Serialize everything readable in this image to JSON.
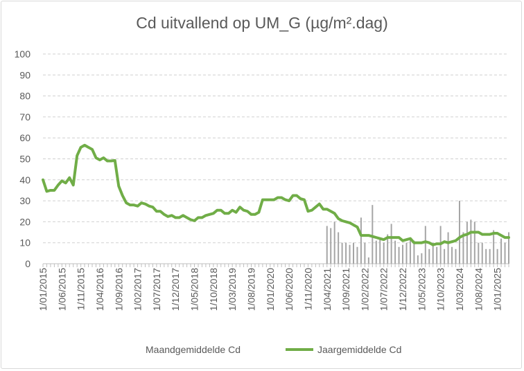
{
  "chart_data": {
    "type": "bar+line",
    "title": "Cd uitvallend op UM_G (µg/m².dag)",
    "ylim": [
      0,
      100
    ],
    "yticks": [
      0,
      10,
      20,
      30,
      40,
      50,
      60,
      70,
      80,
      90,
      100
    ],
    "xtick_labels": [
      "1/01/2015",
      "1/06/2015",
      "1/11/2015",
      "1/04/2016",
      "1/09/2016",
      "1/02/2017",
      "1/07/2017",
      "1/12/2017",
      "1/05/2018",
      "1/10/2018",
      "1/03/2019",
      "1/08/2019",
      "1/01/2020",
      "1/06/2020",
      "1/11/2020",
      "1/04/2021",
      "1/09/2021",
      "1/02/2022",
      "1/07/2022",
      "1/12/2022",
      "1/05/2023",
      "1/10/2023",
      "1/03/2024",
      "1/08/2024",
      "1/01/2025"
    ],
    "x_start": "2015-01",
    "grid": true,
    "legend_position": "bottom",
    "series": [
      {
        "name": "Maandgemiddelde Cd",
        "kind": "bar",
        "color": "#a5a5a5",
        "values": [
          null,
          null,
          null,
          null,
          null,
          null,
          null,
          null,
          null,
          null,
          null,
          null,
          null,
          null,
          null,
          null,
          null,
          null,
          null,
          null,
          null,
          null,
          null,
          null,
          null,
          null,
          null,
          null,
          null,
          null,
          null,
          null,
          null,
          null,
          null,
          null,
          null,
          null,
          null,
          null,
          null,
          null,
          null,
          null,
          null,
          null,
          null,
          null,
          null,
          null,
          null,
          null,
          null,
          null,
          null,
          null,
          null,
          null,
          null,
          null,
          null,
          null,
          null,
          null,
          null,
          null,
          null,
          null,
          null,
          null,
          null,
          null,
          null,
          null,
          null,
          18,
          17,
          20,
          15,
          10,
          10,
          9,
          10,
          8,
          22,
          10,
          3,
          28,
          11,
          12,
          10,
          14,
          19,
          11,
          8,
          9,
          10,
          12,
          11,
          4,
          5,
          18,
          7,
          10,
          8,
          18,
          7,
          15,
          8,
          7,
          30,
          15,
          20,
          21,
          20,
          10,
          10,
          7,
          7,
          16,
          7,
          12,
          10,
          15
        ]
      },
      {
        "name": "Jaargemiddelde Cd",
        "kind": "line",
        "color": "#70ad47",
        "values": [
          40,
          34.5,
          35,
          35,
          37.5,
          39.5,
          38.5,
          41,
          37.5,
          51.5,
          55.5,
          56.5,
          55.5,
          54.5,
          50.5,
          49.5,
          50.5,
          49,
          49,
          49.2,
          37,
          32.5,
          29,
          28,
          28,
          27.5,
          29,
          28.5,
          27.5,
          27,
          25,
          25,
          23.5,
          22.5,
          23,
          22,
          22,
          23,
          22,
          21,
          20.5,
          22,
          22,
          23,
          23.5,
          24,
          25.5,
          25.5,
          24,
          24,
          25.5,
          24.5,
          27,
          25.5,
          25,
          23.5,
          23.5,
          24.5,
          30.5,
          30.5,
          30.5,
          30.5,
          31.5,
          31.5,
          30.5,
          30,
          32.5,
          32.5,
          31,
          30.5,
          25,
          25.5,
          27,
          28.5,
          26,
          26,
          25,
          24,
          21.5,
          20.5,
          20,
          19.5,
          18.5,
          17.5,
          13.5,
          13.5,
          13.5,
          13,
          12.5,
          12,
          11.5,
          12.5,
          12.5,
          12.5,
          12.5,
          11,
          11.5,
          12,
          10,
          10,
          10,
          10.5,
          10,
          9,
          9.5,
          9.5,
          10.5,
          10,
          10.5,
          11,
          12.5,
          13.5,
          14,
          15,
          15,
          15,
          14,
          14,
          14,
          14.5,
          14.5,
          13.5,
          12.5,
          12.5
        ]
      }
    ]
  }
}
